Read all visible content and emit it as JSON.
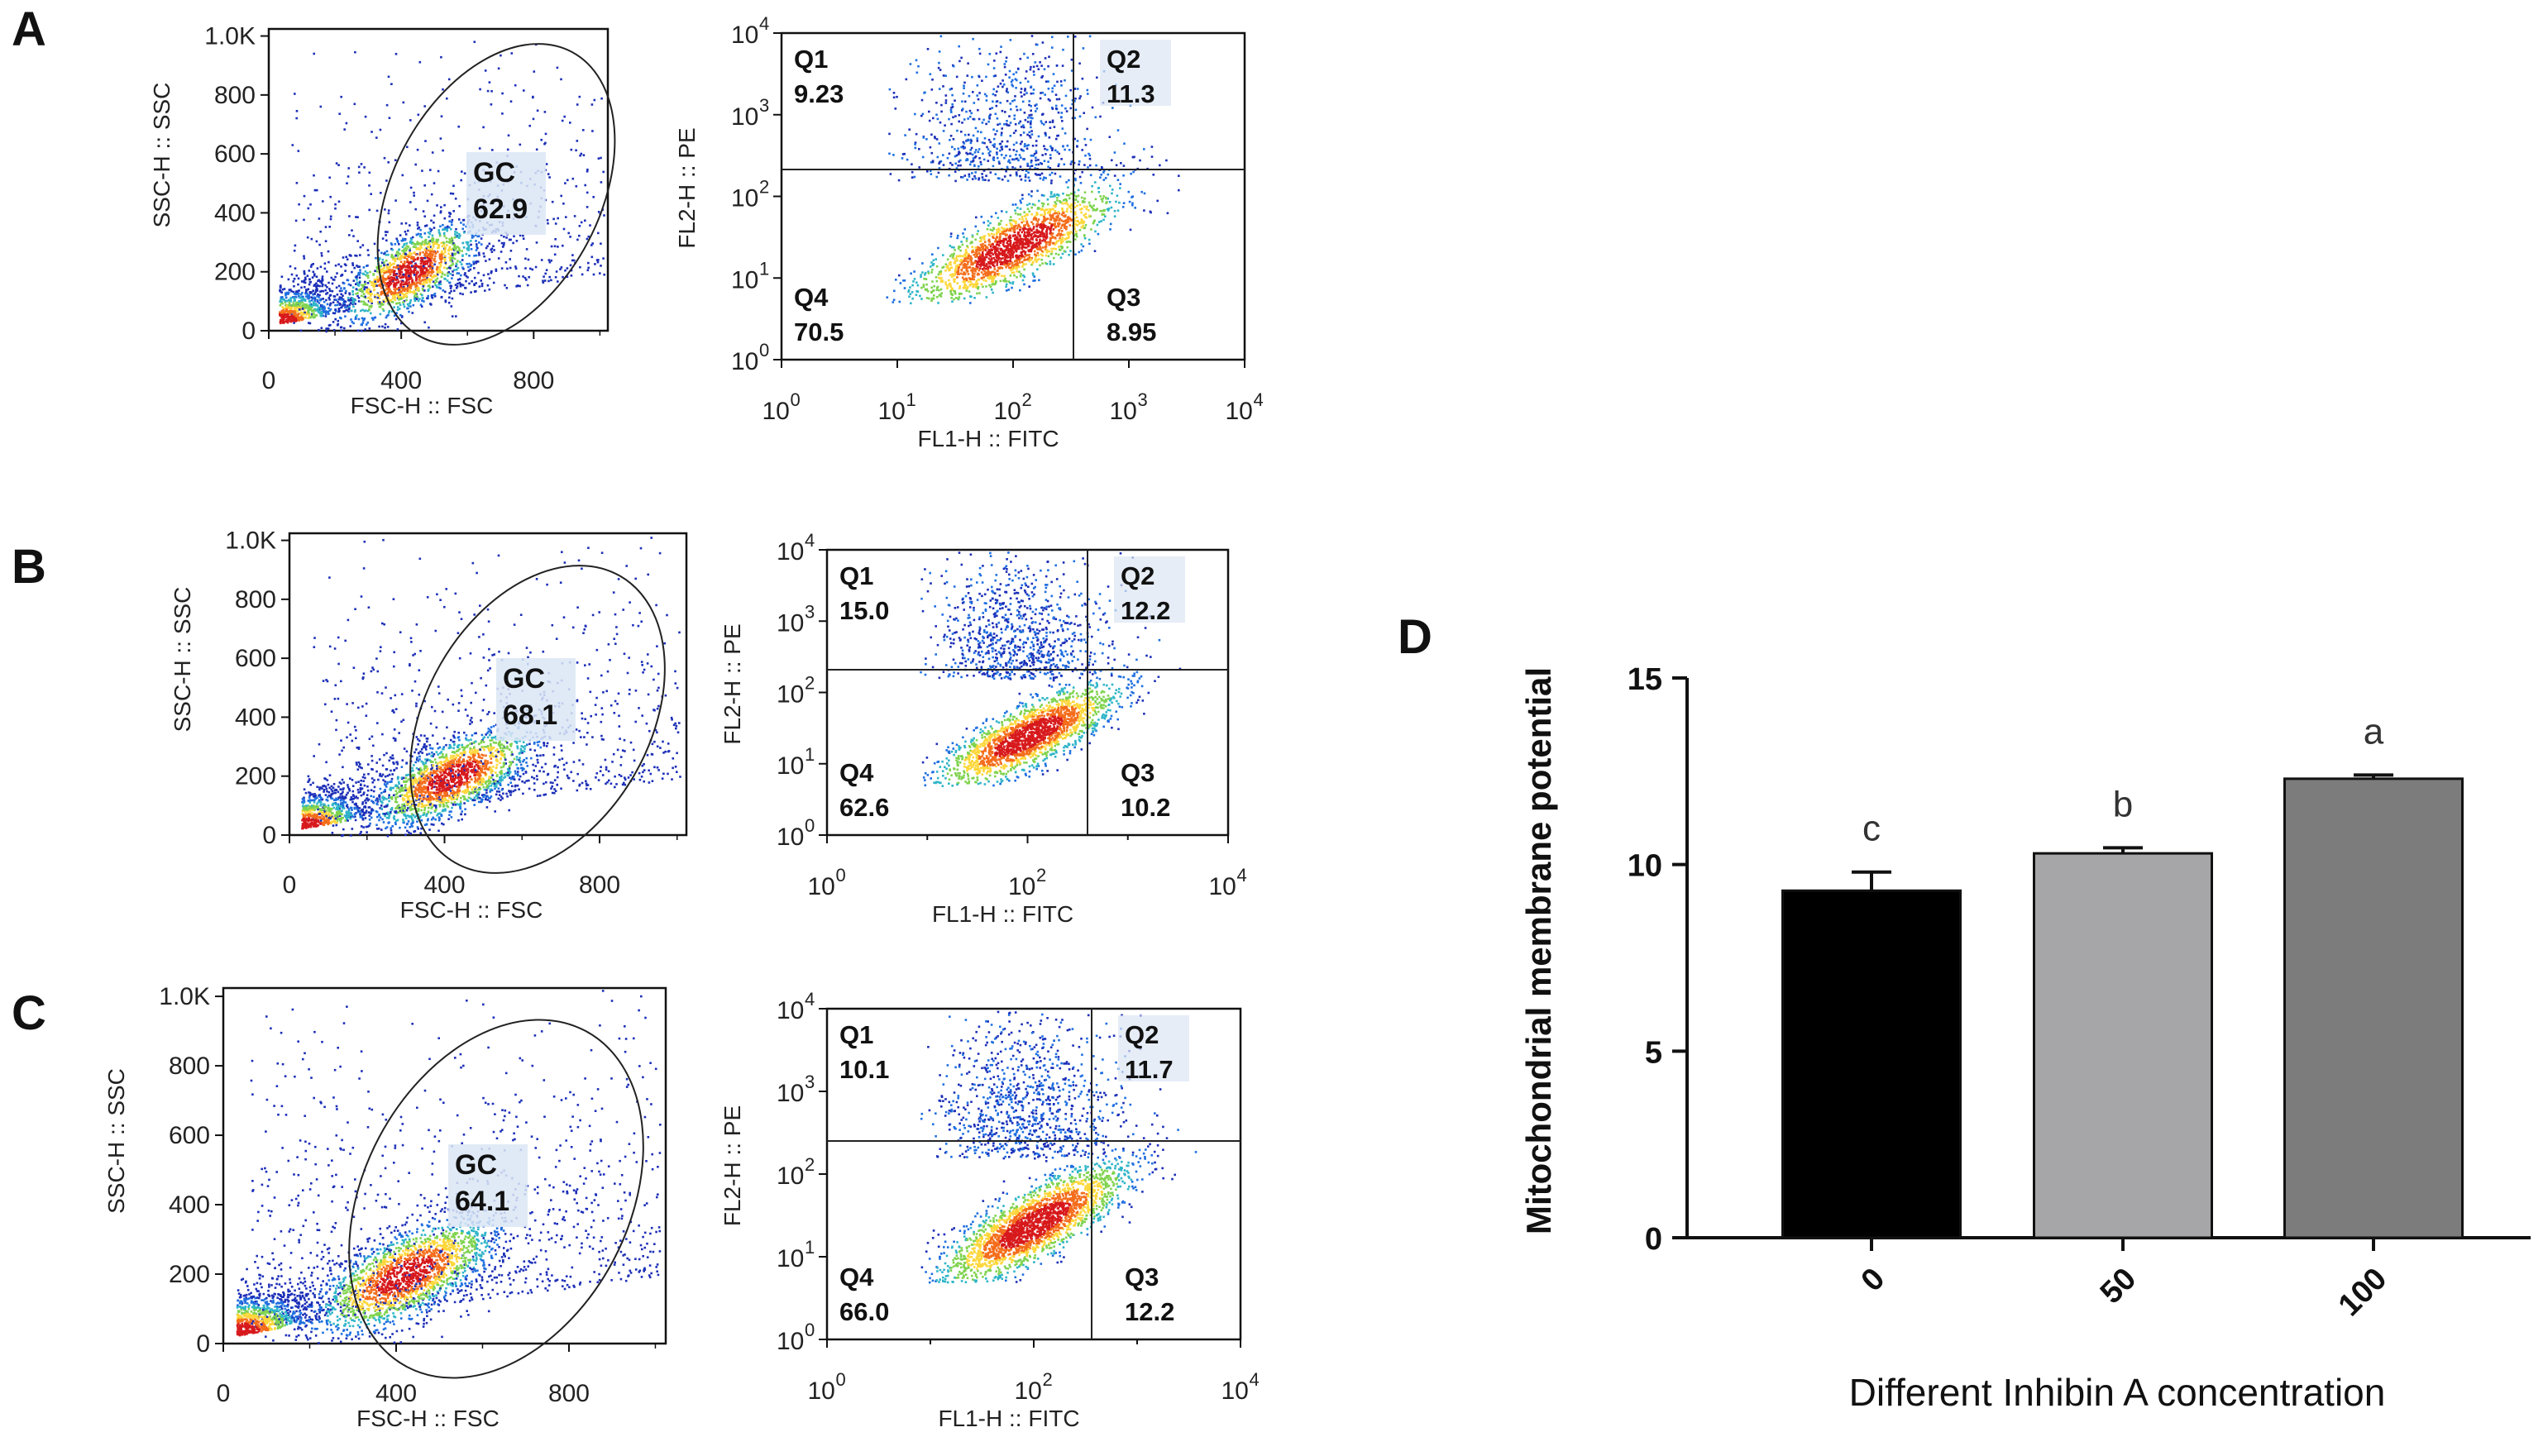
{
  "chart_data": [
    {
      "type": "scatter",
      "panel": "A",
      "title": "",
      "xlabel": "FSC-H :: FSC",
      "ylabel": "SSC-H :: SSC",
      "xlim": [
        0,
        1024
      ],
      "ylim": [
        0,
        1024
      ],
      "x_ticks": [
        "0",
        "400",
        "800"
      ],
      "y_ticks": [
        "0",
        "200",
        "400",
        "600",
        "800",
        "1.0K"
      ],
      "gate": {
        "name": "GC",
        "value": "62.9"
      }
    },
    {
      "type": "scatter",
      "panel": "A",
      "scale": "log",
      "xlabel": "FL1-H :: FITC",
      "ylabel": "FL2-H :: PE",
      "xlim": [
        1,
        10000
      ],
      "ylim": [
        1,
        10000
      ],
      "x_ticks": [
        "10^0",
        "10^1",
        "10^2",
        "10^3",
        "10^4"
      ],
      "y_ticks": [
        "10^0",
        "10^1",
        "10^2",
        "10^3",
        "10^4"
      ],
      "quadrants": [
        {
          "name": "Q1",
          "value": "9.23"
        },
        {
          "name": "Q2",
          "value": "11.3"
        },
        {
          "name": "Q3",
          "value": "8.95"
        },
        {
          "name": "Q4",
          "value": "70.5"
        }
      ]
    },
    {
      "type": "scatter",
      "panel": "B",
      "xlabel": "FSC-H :: FSC",
      "ylabel": "SSC-H :: SSC",
      "xlim": [
        0,
        1024
      ],
      "ylim": [
        0,
        1024
      ],
      "x_ticks": [
        "0",
        "400",
        "800"
      ],
      "y_ticks": [
        "0",
        "200",
        "400",
        "600",
        "800",
        "1.0K"
      ],
      "gate": {
        "name": "GC",
        "value": "68.1"
      }
    },
    {
      "type": "scatter",
      "panel": "B",
      "scale": "log",
      "xlabel": "FL1-H :: FITC",
      "ylabel": "FL2-H :: PE",
      "xlim": [
        1,
        10000
      ],
      "ylim": [
        1,
        10000
      ],
      "x_ticks": [
        "10^0",
        "10^2",
        "10^4"
      ],
      "y_ticks": [
        "10^0",
        "10^1",
        "10^2",
        "10^3",
        "10^4"
      ],
      "quadrants": [
        {
          "name": "Q1",
          "value": "15.0"
        },
        {
          "name": "Q2",
          "value": "12.2"
        },
        {
          "name": "Q3",
          "value": "10.2"
        },
        {
          "name": "Q4",
          "value": "62.6"
        }
      ]
    },
    {
      "type": "scatter",
      "panel": "C",
      "xlabel": "FSC-H :: FSC",
      "ylabel": "SSC-H :: SSC",
      "xlim": [
        0,
        1024
      ],
      "ylim": [
        0,
        1024
      ],
      "x_ticks": [
        "0",
        "400",
        "800"
      ],
      "y_ticks": [
        "0",
        "200",
        "400",
        "600",
        "800",
        "1.0K"
      ],
      "gate": {
        "name": "GC",
        "value": "64.1"
      }
    },
    {
      "type": "scatter",
      "panel": "C",
      "scale": "log",
      "xlabel": "FL1-H :: FITC",
      "ylabel": "FL2-H :: PE",
      "xlim": [
        1,
        10000
      ],
      "ylim": [
        1,
        10000
      ],
      "x_ticks": [
        "10^0",
        "10^2",
        "10^4"
      ],
      "y_ticks": [
        "10^0",
        "10^1",
        "10^2",
        "10^3",
        "10^4"
      ],
      "quadrants": [
        {
          "name": "Q1",
          "value": "10.1"
        },
        {
          "name": "Q2",
          "value": "11.7"
        },
        {
          "name": "Q3",
          "value": "12.2"
        },
        {
          "name": "Q4",
          "value": "66.0"
        }
      ]
    },
    {
      "type": "bar",
      "panel": "D",
      "title": "",
      "xlabel": "Different Inhibin A concentration",
      "ylabel": "Mitochondrial membrane potential",
      "categories": [
        "0",
        "50",
        "100"
      ],
      "values": [
        9.3,
        10.3,
        12.3
      ],
      "errors": [
        0.5,
        0.15,
        0.1
      ],
      "significance": [
        "c",
        "b",
        "a"
      ],
      "colors": [
        "#000000",
        "#a6a6a8",
        "#7c7c7c"
      ],
      "ylim": [
        0,
        15
      ],
      "y_ticks": [
        "0",
        "5",
        "10",
        "15"
      ]
    }
  ],
  "panel_labels": [
    "A",
    "B",
    "C",
    "D"
  ]
}
